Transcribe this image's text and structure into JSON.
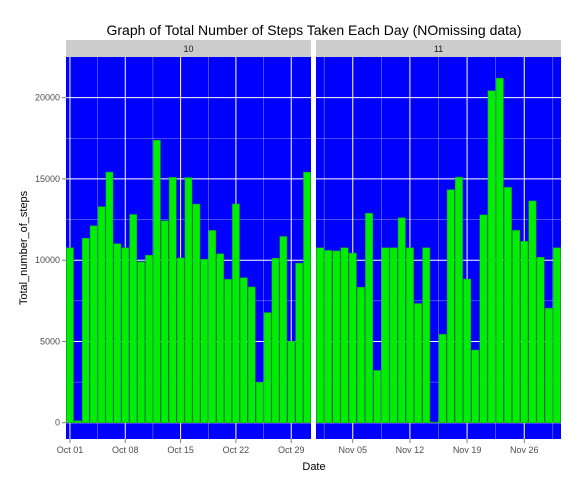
{
  "chart_data": {
    "type": "bar",
    "title": "Graph of Total Number of Steps Taken Each Day (NOmissing data)",
    "xlabel": "Date",
    "ylabel": "Total_number_of_steps",
    "ylim": [
      -1000,
      22500
    ],
    "yticks": [
      0,
      5000,
      10000,
      15000,
      20000
    ],
    "grid": true,
    "colors": {
      "panel_background": "#0000ff",
      "bar_fill": "#00ee00",
      "bar_outline": "#229922",
      "grid": "#ffffff",
      "strip_background": "#cccccc"
    },
    "panels": [
      {
        "strip_label": "10",
        "days_span": [
          1,
          31
        ],
        "x_ticks": [
          {
            "day": 1,
            "label": "Oct 01"
          },
          {
            "day": 8,
            "label": "Oct 08"
          },
          {
            "day": 15,
            "label": "Oct 15"
          },
          {
            "day": 22,
            "label": "Oct 22"
          },
          {
            "day": 29,
            "label": "Oct 29"
          }
        ],
        "series": [
          {
            "date": "Oct 01",
            "value": 10766
          },
          {
            "date": "Oct 02",
            "value": 126
          },
          {
            "date": "Oct 03",
            "value": 11352
          },
          {
            "date": "Oct 04",
            "value": 12116
          },
          {
            "date": "Oct 05",
            "value": 13294
          },
          {
            "date": "Oct 06",
            "value": 15420
          },
          {
            "date": "Oct 07",
            "value": 11015
          },
          {
            "date": "Oct 08",
            "value": 10766
          },
          {
            "date": "Oct 09",
            "value": 12811
          },
          {
            "date": "Oct 10",
            "value": 9900
          },
          {
            "date": "Oct 11",
            "value": 10304
          },
          {
            "date": "Oct 12",
            "value": 17382
          },
          {
            "date": "Oct 13",
            "value": 12426
          },
          {
            "date": "Oct 14",
            "value": 15098
          },
          {
            "date": "Oct 15",
            "value": 10139
          },
          {
            "date": "Oct 16",
            "value": 15084
          },
          {
            "date": "Oct 17",
            "value": 13452
          },
          {
            "date": "Oct 18",
            "value": 10056
          },
          {
            "date": "Oct 19",
            "value": 11829
          },
          {
            "date": "Oct 20",
            "value": 10395
          },
          {
            "date": "Oct 21",
            "value": 8821
          },
          {
            "date": "Oct 22",
            "value": 13460
          },
          {
            "date": "Oct 23",
            "value": 8918
          },
          {
            "date": "Oct 24",
            "value": 8355
          },
          {
            "date": "Oct 25",
            "value": 2492
          },
          {
            "date": "Oct 26",
            "value": 6778
          },
          {
            "date": "Oct 27",
            "value": 10119
          },
          {
            "date": "Oct 28",
            "value": 11458
          },
          {
            "date": "Oct 29",
            "value": 5018
          },
          {
            "date": "Oct 30",
            "value": 9819
          },
          {
            "date": "Oct 31",
            "value": 15414
          }
        ]
      },
      {
        "strip_label": "11",
        "days_span": [
          1,
          30
        ],
        "x_ticks": [
          {
            "day": 5,
            "label": "Nov 05"
          },
          {
            "day": 12,
            "label": "Nov 12"
          },
          {
            "day": 19,
            "label": "Nov 19"
          },
          {
            "day": 26,
            "label": "Nov 26"
          }
        ],
        "series": [
          {
            "date": "Nov 01",
            "value": 10766
          },
          {
            "date": "Nov 02",
            "value": 10600
          },
          {
            "date": "Nov 03",
            "value": 10571
          },
          {
            "date": "Nov 04",
            "value": 10766
          },
          {
            "date": "Nov 05",
            "value": 10439
          },
          {
            "date": "Nov 06",
            "value": 8334
          },
          {
            "date": "Nov 07",
            "value": 12883
          },
          {
            "date": "Nov 08",
            "value": 3219
          },
          {
            "date": "Nov 09",
            "value": 10766
          },
          {
            "date": "Nov 10",
            "value": 10766
          },
          {
            "date": "Nov 11",
            "value": 12608
          },
          {
            "date": "Nov 12",
            "value": 10765
          },
          {
            "date": "Nov 13",
            "value": 7336
          },
          {
            "date": "Nov 14",
            "value": 10766
          },
          {
            "date": "Nov 15",
            "value": 41
          },
          {
            "date": "Nov 16",
            "value": 5441
          },
          {
            "date": "Nov 17",
            "value": 14339
          },
          {
            "date": "Nov 18",
            "value": 15110
          },
          {
            "date": "Nov 19",
            "value": 8841
          },
          {
            "date": "Nov 20",
            "value": 4472
          },
          {
            "date": "Nov 21",
            "value": 12787
          },
          {
            "date": "Nov 22",
            "value": 20427
          },
          {
            "date": "Nov 23",
            "value": 21194
          },
          {
            "date": "Nov 24",
            "value": 14478
          },
          {
            "date": "Nov 25",
            "value": 11834
          },
          {
            "date": "Nov 26",
            "value": 11162
          },
          {
            "date": "Nov 27",
            "value": 13646
          },
          {
            "date": "Nov 28",
            "value": 10183
          },
          {
            "date": "Nov 29",
            "value": 7047
          },
          {
            "date": "Nov 30",
            "value": 10766
          }
        ]
      }
    ]
  }
}
